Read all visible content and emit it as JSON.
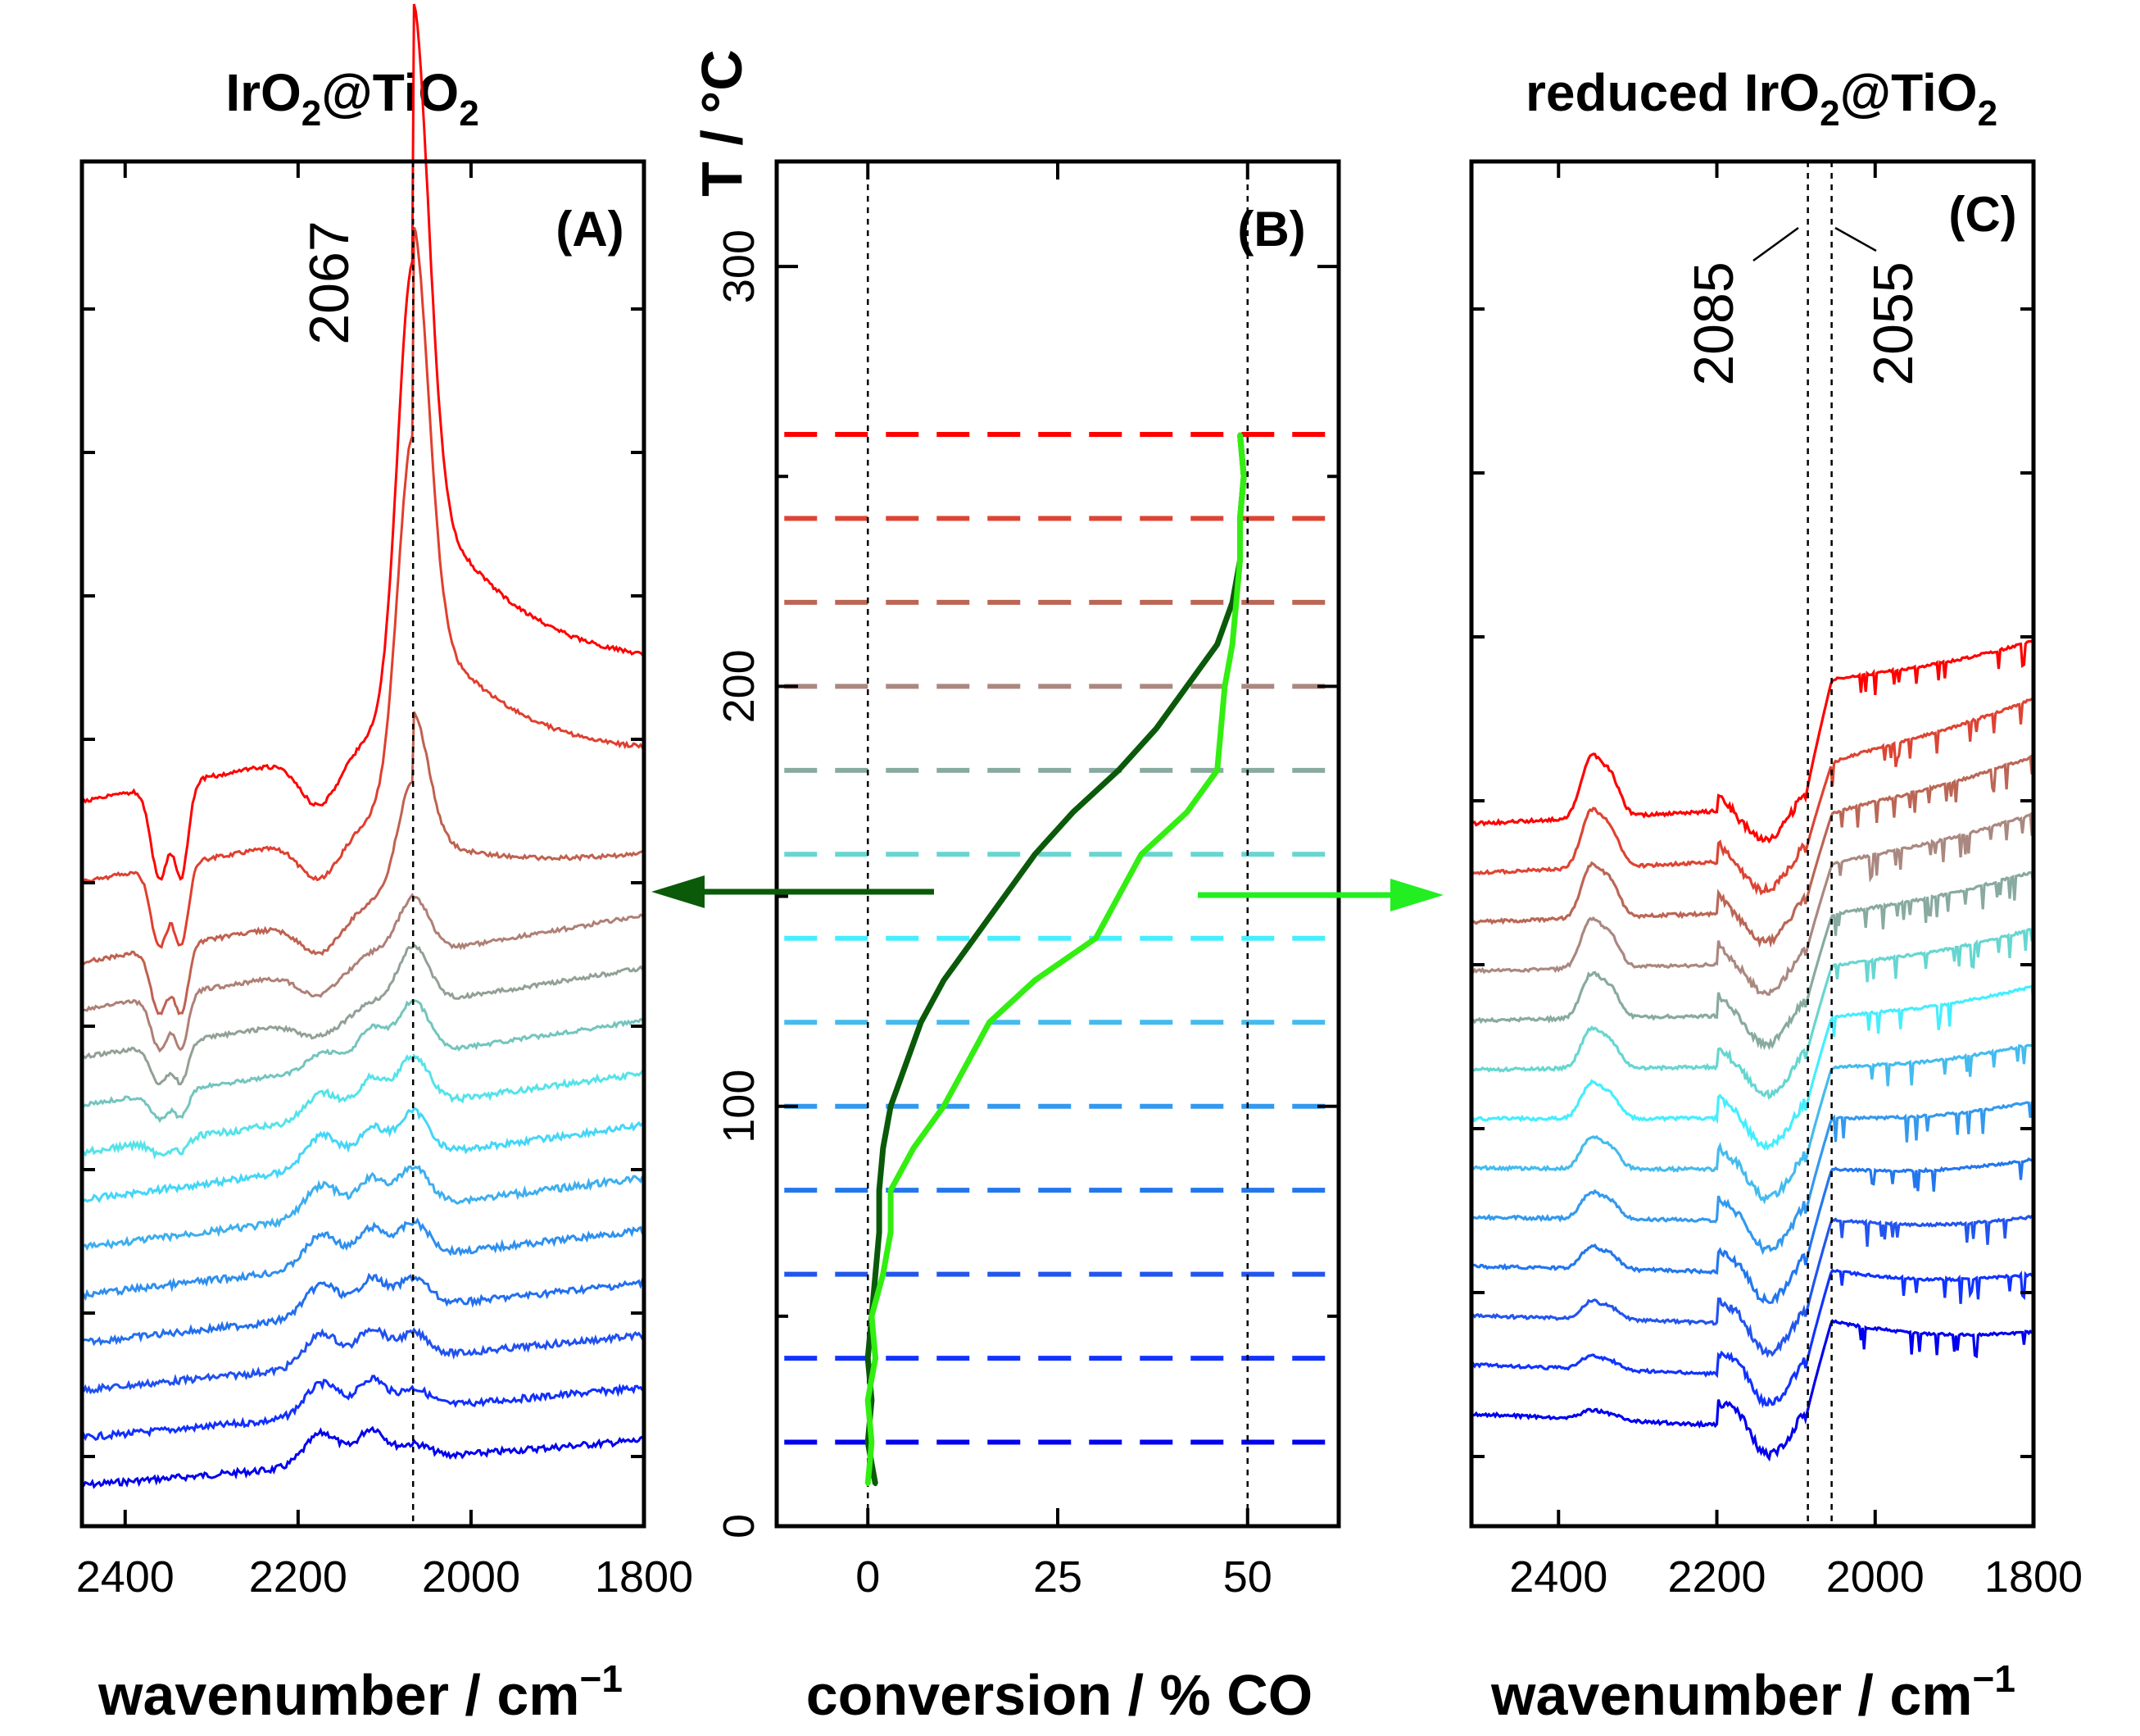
{
  "chart_data": [
    {
      "type": "line",
      "panel_label": "(A)",
      "title_main": "IrO",
      "title_sub1": "2",
      "title_mid": "@TiO",
      "title_sub2": "2",
      "xlabel_main": "wavenumber / cm",
      "xlabel_sup": "−1",
      "xlim": [
        2450,
        1800
      ],
      "x_ticks": [
        "2400",
        "2200",
        "2000",
        "1800"
      ],
      "annotation": "2067",
      "marker_line_x": 2067,
      "y_ticks_labeled": false,
      "series_count": 14
    },
    {
      "type": "line",
      "panel_label": "(B)",
      "xlabel": "conversion / % CO",
      "ylabel": "T / °C",
      "xlim": [
        -12,
        62
      ],
      "ylim": [
        0,
        325
      ],
      "x_ticks": [
        "0",
        "25",
        "50"
      ],
      "y_ticks": [
        "0",
        "100",
        "200",
        "300"
      ],
      "reference_lines_x": [
        0,
        50
      ],
      "temperature_levels": [
        20,
        40,
        60,
        80,
        100,
        120,
        140,
        160,
        180,
        200,
        220,
        240,
        260
      ],
      "series": [
        {
          "color": "#0a5a0a",
          "points": [
            [
              1,
              10
            ],
            [
              0,
              20
            ],
            [
              0.5,
              30
            ],
            [
              0,
              40
            ],
            [
              0.5,
              50
            ],
            [
              1,
              60
            ],
            [
              1.5,
              70
            ],
            [
              1.5,
              80
            ],
            [
              2,
              90
            ],
            [
              3,
              100
            ],
            [
              5,
              110
            ],
            [
              7,
              120
            ],
            [
              10,
              130
            ],
            [
              14,
              140
            ],
            [
              18,
              150
            ],
            [
              22,
              160
            ],
            [
              27,
              170
            ],
            [
              33,
              180
            ],
            [
              38,
              190
            ],
            [
              42,
              200
            ],
            [
              46,
              210
            ],
            [
              48,
              220
            ],
            [
              49,
              230
            ],
            [
              49,
              240
            ],
            [
              49.5,
              250
            ],
            [
              49,
              260
            ]
          ]
        },
        {
          "color": "#33ee11",
          "points": [
            [
              0,
              10
            ],
            [
              0.5,
              20
            ],
            [
              0,
              30
            ],
            [
              1,
              40
            ],
            [
              0.5,
              50
            ],
            [
              2,
              60
            ],
            [
              3,
              70
            ],
            [
              3,
              80
            ],
            [
              6,
              90
            ],
            [
              10,
              100
            ],
            [
              13,
              110
            ],
            [
              16,
              120
            ],
            [
              22,
              130
            ],
            [
              30,
              140
            ],
            [
              33,
              150
            ],
            [
              36,
              160
            ],
            [
              42,
              170
            ],
            [
              46,
              180
            ],
            [
              46.5,
              190
            ],
            [
              47,
              200
            ],
            [
              48,
              210
            ],
            [
              48.5,
              220
            ],
            [
              49,
              230
            ],
            [
              49,
              240
            ],
            [
              49.5,
              250
            ],
            [
              49,
              260
            ]
          ]
        }
      ]
    },
    {
      "type": "line",
      "panel_label": "(C)",
      "title": "reduced IrO@TiO",
      "title_main": "reduced IrO",
      "title_sub1": "2",
      "title_mid": "@TiO",
      "title_sub2": "2",
      "xlabel_main": "wavenumber / cm",
      "xlabel_sup": "−1",
      "xlim": [
        2510,
        1800
      ],
      "x_ticks": [
        "2400",
        "2200",
        "2000",
        "1800"
      ],
      "annotations": [
        "2085",
        "2055"
      ],
      "marker_lines_x": [
        2085,
        2055
      ],
      "y_ticks_labeled": false,
      "series_count": 13
    }
  ],
  "colors": {
    "gradient_hot": "#ff0000",
    "gradient_cold": "#0000ee",
    "arrow_left": "#0a5a0a",
    "arrow_right": "#22ee22"
  }
}
